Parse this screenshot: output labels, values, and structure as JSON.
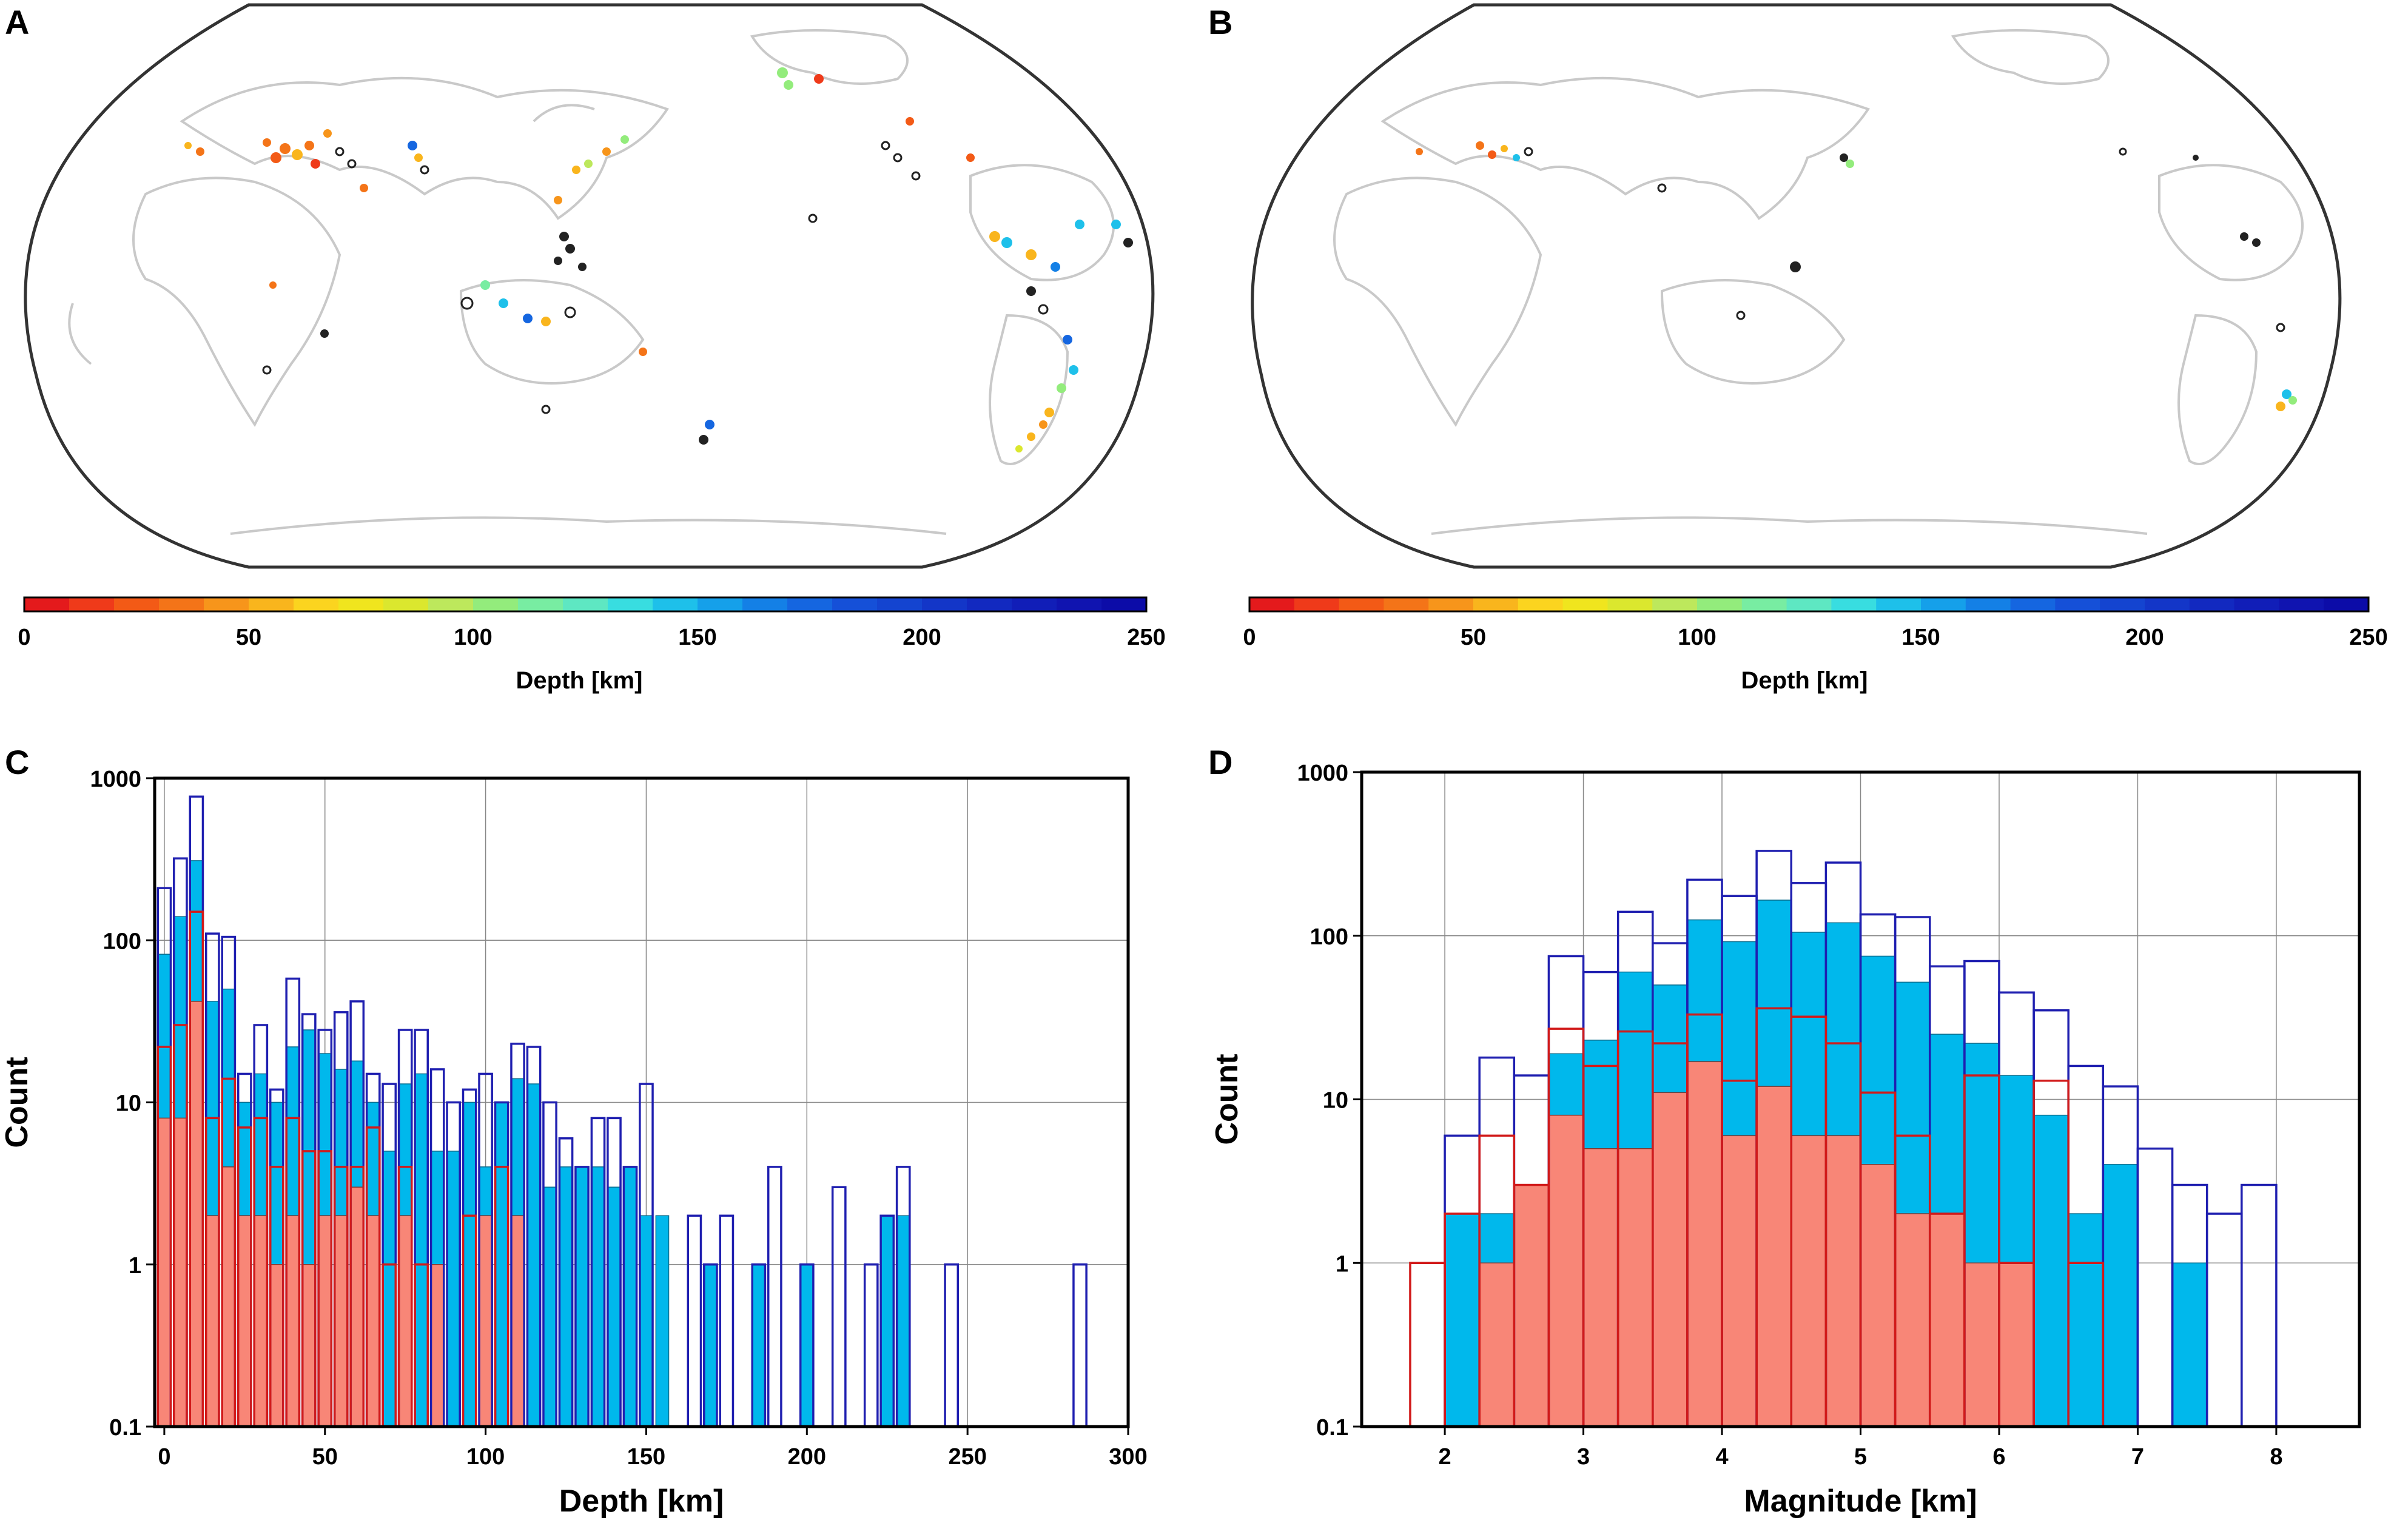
{
  "panels": {
    "a": {
      "letter": "A"
    },
    "b": {
      "letter": "B"
    },
    "c": {
      "letter": "C"
    },
    "d": {
      "letter": "D"
    }
  },
  "colors": {
    "all": "#1f1fb0",
    "blue_fill": "#00b8ec",
    "red_fill": "#f88677",
    "red_edge": "#d11a1a",
    "map_outline": "#333333",
    "land": "#c9c9c9"
  },
  "colorbars": {
    "a": {
      "label": "Depth [km]",
      "ticks": [
        "0",
        "50",
        "100",
        "150",
        "200",
        "250"
      ]
    },
    "b": {
      "label": "Depth [km]",
      "ticks": [
        "0",
        "50",
        "100",
        "150",
        "200",
        "250"
      ]
    },
    "stops": [
      "#e41a1c",
      "#ef3a1a",
      "#f35a16",
      "#f47418",
      "#f7951b",
      "#f9b51d",
      "#fbd41f",
      "#f0e51e",
      "#dbe72e",
      "#bde85c",
      "#93ec7c",
      "#78eda2",
      "#5ee7c2",
      "#38dde0",
      "#1ec0ea",
      "#15a0ea",
      "#1480e6",
      "#1566e0",
      "#1550d8",
      "#1444d0",
      "#1336c8",
      "#1229c0",
      "#111eb8",
      "#1014b0",
      "#0c0ca8"
    ]
  },
  "chart_data": [
    {
      "type": "bar",
      "panel": "C",
      "title": "",
      "xlabel": "Depth [km]",
      "ylabel": "Count",
      "scale": "log",
      "xlim": [
        -3,
        300
      ],
      "ylim": [
        0.1,
        1000
      ],
      "xticks": [
        "0",
        "50",
        "100",
        "150",
        "200",
        "250",
        "300"
      ],
      "yticks": [
        "0.1",
        "1",
        "10",
        "100",
        "1000"
      ],
      "bin_width": 5,
      "series": [
        {
          "name": "all",
          "style": "outline-blue",
          "bins": [
            [
              0,
              210
            ],
            [
              5,
              320
            ],
            [
              10,
              770
            ],
            [
              15,
              110
            ],
            [
              20,
              105
            ],
            [
              25,
              15
            ],
            [
              30,
              30
            ],
            [
              35,
              12
            ],
            [
              40,
              58
            ],
            [
              45,
              35
            ],
            [
              50,
              28
            ],
            [
              55,
              36
            ],
            [
              60,
              42
            ],
            [
              65,
              15
            ],
            [
              70,
              13
            ],
            [
              75,
              28
            ],
            [
              80,
              28
            ],
            [
              85,
              16
            ],
            [
              90,
              10
            ],
            [
              95,
              12
            ],
            [
              100,
              15
            ],
            [
              105,
              10
            ],
            [
              110,
              23
            ],
            [
              115,
              22
            ],
            [
              120,
              10
            ],
            [
              125,
              6
            ],
            [
              130,
              4
            ],
            [
              135,
              8
            ],
            [
              140,
              8
            ],
            [
              145,
              4
            ],
            [
              150,
              13
            ],
            [
              165,
              2
            ],
            [
              170,
              1
            ],
            [
              175,
              2
            ],
            [
              185,
              1
            ],
            [
              190,
              4
            ],
            [
              200,
              1
            ],
            [
              210,
              3
            ],
            [
              220,
              1
            ],
            [
              225,
              2
            ],
            [
              230,
              4
            ],
            [
              245,
              1
            ],
            [
              285,
              1
            ]
          ]
        },
        {
          "name": "blue",
          "style": "fill-blue",
          "bins": [
            [
              0,
              82
            ],
            [
              5,
              140
            ],
            [
              10,
              310
            ],
            [
              15,
              42
            ],
            [
              20,
              50
            ],
            [
              25,
              10
            ],
            [
              30,
              15
            ],
            [
              35,
              10
            ],
            [
              40,
              22
            ],
            [
              45,
              28
            ],
            [
              50,
              20
            ],
            [
              55,
              16
            ],
            [
              60,
              18
            ],
            [
              65,
              10
            ],
            [
              70,
              5
            ],
            [
              75,
              13
            ],
            [
              80,
              15
            ],
            [
              85,
              5
            ],
            [
              90,
              5
            ],
            [
              95,
              10
            ],
            [
              100,
              4
            ],
            [
              105,
              10
            ],
            [
              110,
              14
            ],
            [
              115,
              13
            ],
            [
              120,
              3
            ],
            [
              125,
              4
            ],
            [
              130,
              4
            ],
            [
              135,
              4
            ],
            [
              140,
              3
            ],
            [
              145,
              4
            ],
            [
              150,
              2
            ],
            [
              155,
              2
            ],
            [
              170,
              1
            ],
            [
              185,
              1
            ],
            [
              200,
              1
            ],
            [
              225,
              2
            ],
            [
              230,
              2
            ]
          ]
        },
        {
          "name": "red-outline",
          "style": "outline-red",
          "bins": [
            [
              0,
              22
            ],
            [
              5,
              30
            ],
            [
              10,
              150
            ],
            [
              15,
              8
            ],
            [
              20,
              14
            ],
            [
              25,
              7
            ],
            [
              30,
              8
            ],
            [
              35,
              4
            ],
            [
              40,
              8
            ],
            [
              45,
              5
            ],
            [
              50,
              5
            ],
            [
              55,
              4
            ],
            [
              60,
              4
            ],
            [
              65,
              7
            ],
            [
              70,
              1
            ],
            [
              75,
              4
            ],
            [
              80,
              1
            ],
            [
              95,
              2
            ],
            [
              105,
              4
            ]
          ]
        },
        {
          "name": "red",
          "style": "fill-red",
          "bins": [
            [
              0,
              8
            ],
            [
              5,
              8
            ],
            [
              10,
              42
            ],
            [
              15,
              2
            ],
            [
              20,
              4
            ],
            [
              25,
              2
            ],
            [
              30,
              2
            ],
            [
              35,
              1
            ],
            [
              40,
              2
            ],
            [
              45,
              1
            ],
            [
              50,
              2
            ],
            [
              55,
              2
            ],
            [
              60,
              3
            ],
            [
              65,
              2
            ],
            [
              75,
              2
            ],
            [
              85,
              1
            ],
            [
              100,
              2
            ],
            [
              110,
              2
            ]
          ]
        }
      ]
    },
    {
      "type": "bar",
      "panel": "D",
      "title": "",
      "xlabel": "Magnitude [km]",
      "ylabel": "Count",
      "scale": "log",
      "xlim": [
        1.4,
        8.6
      ],
      "ylim": [
        0.1,
        1000
      ],
      "xticks": [
        "2",
        "3",
        "4",
        "5",
        "6",
        "7",
        "8"
      ],
      "yticks": [
        "0.1",
        "1",
        "10",
        "100",
        "1000"
      ],
      "bin_width": 0.25,
      "series": [
        {
          "name": "all",
          "style": "outline-blue",
          "bins": [
            [
              2.125,
              6
            ],
            [
              2.375,
              18
            ],
            [
              2.625,
              14
            ],
            [
              2.875,
              75
            ],
            [
              3.125,
              60
            ],
            [
              3.375,
              140
            ],
            [
              3.625,
              90
            ],
            [
              3.875,
              220
            ],
            [
              4.125,
              175
            ],
            [
              4.375,
              330
            ],
            [
              4.625,
              210
            ],
            [
              4.875,
              280
            ],
            [
              5.125,
              135
            ],
            [
              5.375,
              130
            ],
            [
              5.625,
              65
            ],
            [
              5.875,
              70
            ],
            [
              6.125,
              45
            ],
            [
              6.375,
              35
            ],
            [
              6.625,
              16
            ],
            [
              6.875,
              12
            ],
            [
              7.125,
              5
            ],
            [
              7.375,
              3
            ],
            [
              7.625,
              2
            ],
            [
              7.875,
              3
            ]
          ]
        },
        {
          "name": "blue",
          "style": "fill-blue",
          "bins": [
            [
              2.125,
              2
            ],
            [
              2.375,
              2
            ],
            [
              2.625,
              3
            ],
            [
              2.875,
              19
            ],
            [
              3.125,
              23
            ],
            [
              3.375,
              60
            ],
            [
              3.625,
              50
            ],
            [
              3.875,
              125
            ],
            [
              4.125,
              92
            ],
            [
              4.375,
              165
            ],
            [
              4.625,
              105
            ],
            [
              4.875,
              120
            ],
            [
              5.125,
              75
            ],
            [
              5.375,
              52
            ],
            [
              5.625,
              25
            ],
            [
              5.875,
              22
            ],
            [
              6.125,
              14
            ],
            [
              6.375,
              8
            ],
            [
              6.625,
              2
            ],
            [
              6.875,
              4
            ],
            [
              7.375,
              1
            ]
          ]
        },
        {
          "name": "red-outline",
          "style": "outline-red",
          "bins": [
            [
              1.875,
              1
            ],
            [
              2.125,
              2
            ],
            [
              2.375,
              6
            ],
            [
              2.625,
              3
            ],
            [
              2.875,
              27
            ],
            [
              3.125,
              16
            ],
            [
              3.375,
              26
            ],
            [
              3.625,
              22
            ],
            [
              3.875,
              33
            ],
            [
              4.125,
              13
            ],
            [
              4.375,
              36
            ],
            [
              4.625,
              32
            ],
            [
              4.875,
              22
            ],
            [
              5.125,
              11
            ],
            [
              5.375,
              6
            ],
            [
              5.625,
              2
            ],
            [
              5.875,
              14
            ],
            [
              6.125,
              1
            ],
            [
              6.375,
              13
            ],
            [
              6.625,
              1
            ]
          ]
        },
        {
          "name": "red",
          "style": "fill-red",
          "bins": [
            [
              2.375,
              1
            ],
            [
              2.625,
              3
            ],
            [
              2.875,
              8
            ],
            [
              3.125,
              5
            ],
            [
              3.375,
              5
            ],
            [
              3.625,
              11
            ],
            [
              3.875,
              17
            ],
            [
              4.125,
              6
            ],
            [
              4.375,
              12
            ],
            [
              4.625,
              6
            ],
            [
              4.875,
              6
            ],
            [
              5.125,
              4
            ],
            [
              5.375,
              2
            ],
            [
              5.625,
              2
            ],
            [
              5.875,
              1
            ],
            [
              6.125,
              1
            ]
          ]
        }
      ]
    }
  ]
}
